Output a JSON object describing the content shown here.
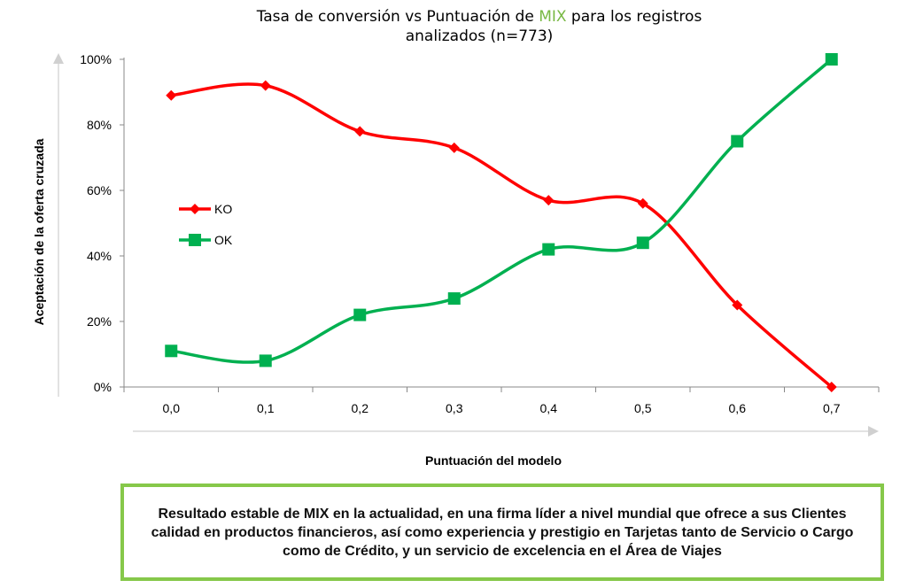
{
  "chart_data": {
    "type": "line",
    "title": {
      "prefix": "Tasa de conversión vs Puntuación de ",
      "highlight": "MIX",
      "suffix": " para los registros",
      "line2": "analizados (n=773)",
      "highlight_color": "#78b843"
    },
    "xlabel": "Puntuación del modelo",
    "ylabel": "Aceptación de la oferta cruzada",
    "categories": [
      "0,0",
      "0,1",
      "0,2",
      "0,3",
      "0,4",
      "0,5",
      "0,6",
      "0,7"
    ],
    "y_ticks": [
      "0%",
      "20%",
      "40%",
      "60%",
      "80%",
      "100%"
    ],
    "ylim": [
      0,
      100
    ],
    "grid": false,
    "legend_position": "left",
    "series": [
      {
        "name": "KO",
        "color": "#ff0000",
        "marker": "diamond",
        "values": [
          89,
          92,
          78,
          73,
          57,
          56,
          25,
          0
        ]
      },
      {
        "name": "OK",
        "color": "#00b050",
        "marker": "square",
        "values": [
          11,
          8,
          22,
          27,
          42,
          44,
          75,
          100
        ]
      }
    ]
  },
  "note": {
    "text": "Resultado estable de MIX en la actualidad, en una firma líder a nivel mundial que ofrece a sus Clientes calidad en productos financieros, así como experiencia y prestigio en Tarjetas tanto de Servicio o Cargo como de Crédito, y un servicio de excelencia en el Área de Viajes",
    "border_color": "#86c84a"
  }
}
